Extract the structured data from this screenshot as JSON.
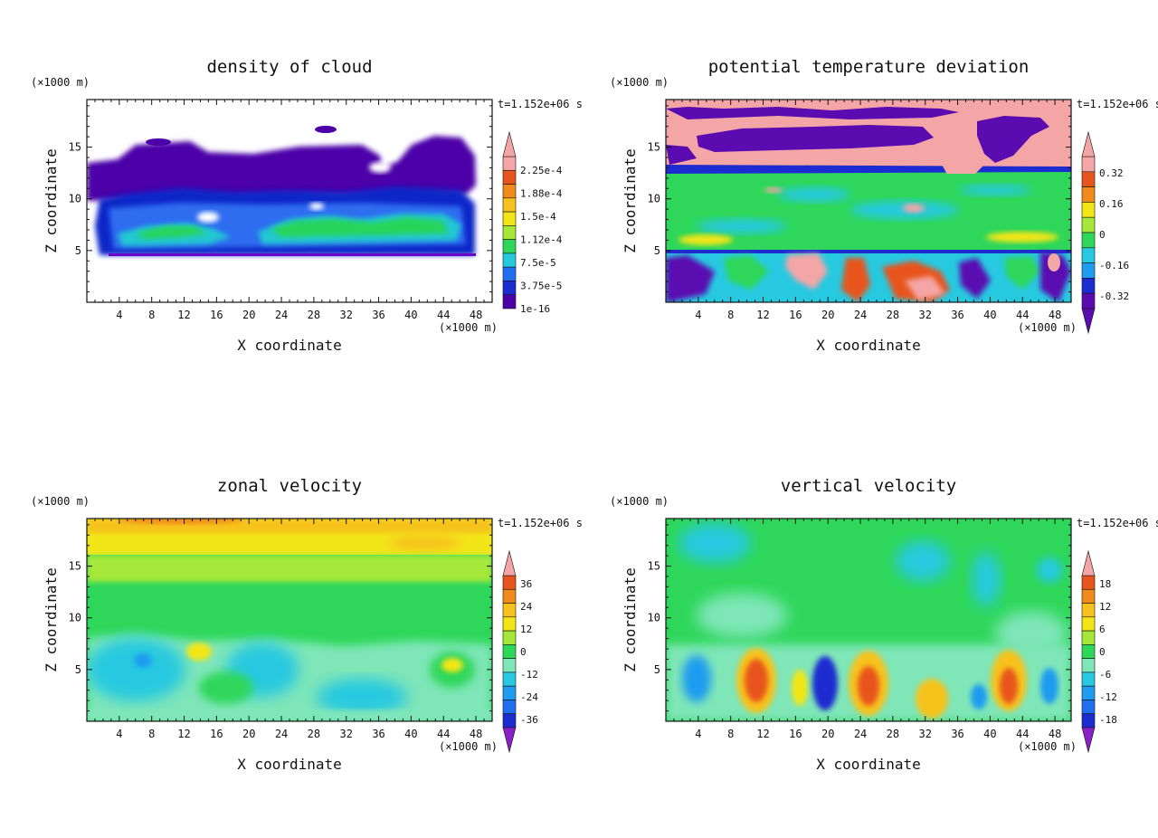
{
  "chart_data": [
    {
      "type": "heatmap",
      "title": "density of cloud",
      "xlabel": "X coordinate",
      "ylabel": "Z coordinate",
      "x_unit": "(×1000 m)",
      "y_unit": "(×1000 m)",
      "time": "t=1.152e+06 s",
      "xlim": [
        0,
        50
      ],
      "ylim": [
        0,
        19.6
      ],
      "xticks": [
        4,
        8,
        12,
        16,
        20,
        24,
        28,
        32,
        36,
        40,
        44,
        48
      ],
      "yticks": [
        5,
        10,
        15
      ],
      "colorbar": {
        "labels": [
          "2.25e-4",
          "1.88e-4",
          "1.5e-4",
          "1.12e-4",
          "7.5e-5",
          "3.75e-5",
          "1e-16"
        ],
        "extend": "max"
      },
      "field_description": "cloud layer between z=5 and z=16; highest densities (green/cyan) near z=6-8 at x 6-18 and 21-47"
    },
    {
      "type": "heatmap",
      "title": "potential temperature deviation",
      "xlabel": "X coordinate",
      "ylabel": "Z coordinate",
      "x_unit": "(×1000 m)",
      "y_unit": "(×1000 m)",
      "time": "t=1.152e+06 s",
      "xlim": [
        0,
        50
      ],
      "ylim": [
        0,
        19.6
      ],
      "xticks": [
        4,
        8,
        12,
        16,
        20,
        24,
        28,
        32,
        36,
        40,
        44,
        48
      ],
      "yticks": [
        5,
        10,
        15
      ],
      "colorbar": {
        "labels": [
          "0.32",
          "0.16",
          "0",
          "-0.16",
          "-0.32"
        ],
        "extend": "both"
      },
      "field_description": "strong positive/negative cells above z=13 and below z=5; near-neutral band between"
    },
    {
      "type": "heatmap",
      "title": "zonal velocity",
      "xlabel": "X coordinate",
      "ylabel": "Z coordinate",
      "x_unit": "(×1000 m)",
      "y_unit": "(×1000 m)",
      "time": "t=1.152e+06 s",
      "xlim": [
        0,
        50
      ],
      "ylim": [
        0,
        19.6
      ],
      "xticks": [
        4,
        8,
        12,
        16,
        20,
        24,
        28,
        32,
        36,
        40,
        44,
        48
      ],
      "yticks": [
        5,
        10,
        15
      ],
      "colorbar": {
        "labels": [
          "36",
          "24",
          "12",
          "0",
          "-12",
          "-24",
          "-36"
        ],
        "extend": "both"
      },
      "field_description": "positive (yellow/orange) aloft near z=17-19, negative (cyan) near surface"
    },
    {
      "type": "heatmap",
      "title": "vertical velocity",
      "xlabel": "X coordinate",
      "ylabel": "Z coordinate",
      "x_unit": "(×1000 m)",
      "y_unit": "(×1000 m)",
      "time": "t=1.152e+06 s",
      "xlim": [
        0,
        50
      ],
      "ylim": [
        0,
        19.6
      ],
      "xticks": [
        4,
        8,
        12,
        16,
        20,
        24,
        28,
        32,
        36,
        40,
        44,
        48
      ],
      "yticks": [
        5,
        10,
        15
      ],
      "colorbar": {
        "labels": [
          "18",
          "12",
          "6",
          "0",
          "-6",
          "-12",
          "-18"
        ],
        "extend": "both"
      },
      "field_description": "updraft cells (orange/red) near x=10, 25, 33, 42 at z=2-5; downdrafts (blue) at x=6, 19, 38, 47"
    }
  ]
}
